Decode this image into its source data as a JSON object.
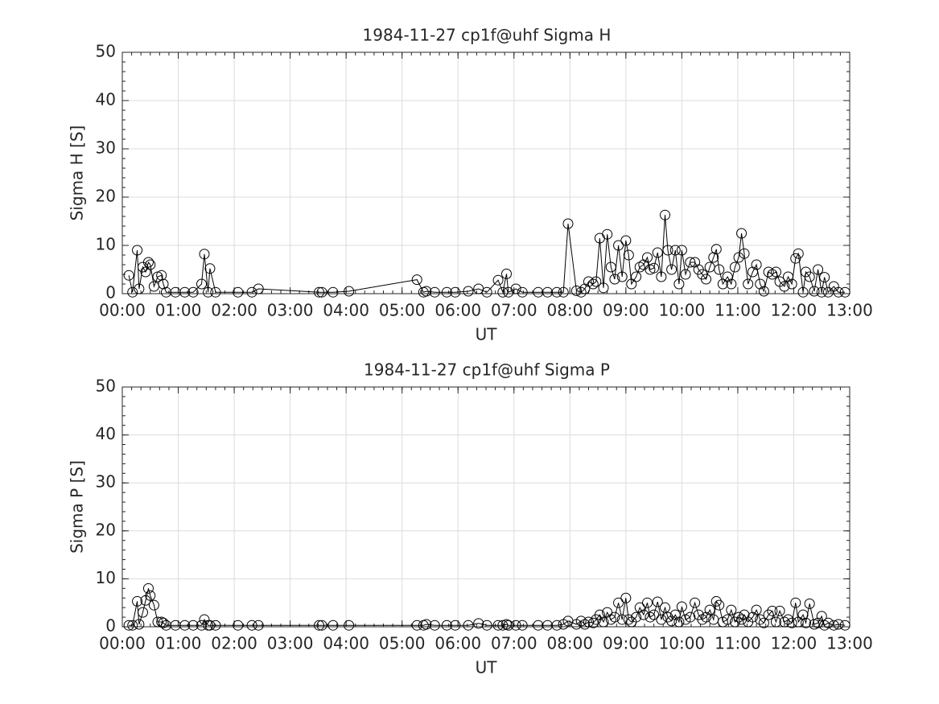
{
  "chart_data": [
    {
      "type": "line",
      "title": "1984-11-27  cp1f@uhf Sigma H",
      "xlabel": "UT",
      "ylabel": "Sigma H [S]",
      "color": "#000000",
      "marker": "circle",
      "grid": true,
      "x": [
        "00:07",
        "00:11",
        "00:16",
        "00:18",
        "00:22",
        "00:25",
        "00:28",
        "00:30",
        "00:34",
        "00:38",
        "00:42",
        "00:44",
        "00:47",
        "00:57",
        "01:07",
        "01:16",
        "01:25",
        "01:28",
        "01:32",
        "01:34",
        "01:40",
        "02:04",
        "02:19",
        "02:26",
        "03:31",
        "03:34",
        "03:46",
        "04:03",
        "05:16",
        "05:23",
        "05:26",
        "05:35",
        "05:48",
        "05:57",
        "06:11",
        "06:22",
        "06:31",
        "06:43",
        "06:48",
        "06:52",
        "06:54",
        "07:02",
        "07:09",
        "07:26",
        "07:36",
        "07:46",
        "07:53",
        "07:58",
        "08:07",
        "08:12",
        "08:16",
        "08:20",
        "08:25",
        "08:28",
        "08:32",
        "08:36",
        "08:40",
        "08:44",
        "08:48",
        "08:52",
        "08:56",
        "09:00",
        "09:03",
        "09:06",
        "09:11",
        "09:15",
        "09:19",
        "09:23",
        "09:26",
        "09:30",
        "09:34",
        "09:38",
        "09:42",
        "09:45",
        "09:49",
        "09:53",
        "09:57",
        "10:00",
        "10:04",
        "10:09",
        "10:14",
        "10:18",
        "10:22",
        "10:26",
        "10:30",
        "10:34",
        "10:37",
        "10:40",
        "10:44",
        "10:49",
        "10:53",
        "10:57",
        "11:01",
        "11:04",
        "11:07",
        "11:11",
        "11:16",
        "11:20",
        "11:24",
        "11:28",
        "11:33",
        "11:37",
        "11:41",
        "11:45",
        "11:50",
        "11:54",
        "11:58",
        "12:02",
        "12:05",
        "12:10",
        "12:13",
        "12:17",
        "12:22",
        "12:26",
        "12:30",
        "12:33",
        "12:37",
        "12:43",
        "12:48",
        "12:55"
      ],
      "values": [
        3.8,
        0.3,
        9,
        1,
        5.5,
        4.5,
        6.5,
        6,
        1.5,
        3.5,
        3.8,
        2,
        0.3,
        0.3,
        0.3,
        0.3,
        2,
        8.2,
        0.3,
        5.2,
        0.3,
        0.3,
        0.3,
        1,
        0.3,
        0.3,
        0.3,
        0.5,
        2.9,
        0.3,
        0.5,
        0.3,
        0.3,
        0.3,
        0.5,
        1,
        0.3,
        2.8,
        0.3,
        4.1,
        0.3,
        1,
        0.3,
        0.3,
        0.3,
        0.3,
        0.3,
        14.5,
        0.6,
        0.3,
        1,
        2.5,
        2,
        2.5,
        11.5,
        1.2,
        12.3,
        5.5,
        3,
        10,
        3.5,
        11,
        8,
        2,
        3.5,
        5.5,
        6,
        7.5,
        5,
        5.3,
        8.5,
        3.5,
        16.3,
        9,
        5,
        9,
        2,
        9,
        4,
        6.5,
        6.5,
        5,
        4,
        3,
        5.5,
        7.5,
        9.2,
        5,
        2,
        3.5,
        2,
        5.5,
        7.5,
        12.5,
        8.3,
        2,
        4.5,
        6,
        2,
        0.5,
        4.5,
        4,
        4.5,
        2.5,
        1.5,
        3.5,
        2,
        7.3,
        8.3,
        0.3,
        4.5,
        3.5,
        0.5,
        5,
        0.3,
        3.4,
        0.3,
        1.5,
        0.3,
        0.3
      ],
      "xlim": [
        "00:00",
        "13:00"
      ],
      "xticks": [
        "00:00",
        "01:00",
        "02:00",
        "03:00",
        "04:00",
        "05:00",
        "06:00",
        "07:00",
        "08:00",
        "09:00",
        "10:00",
        "11:00",
        "12:00",
        "13:00"
      ],
      "ylim": [
        0,
        50
      ],
      "yticks": [
        0,
        10,
        20,
        30,
        40,
        50
      ]
    },
    {
      "type": "line",
      "title": "1984-11-27  cp1f@uhf Sigma P",
      "xlabel": "UT",
      "ylabel": "Sigma P [S]",
      "color": "#000000",
      "marker": "circle",
      "grid": true,
      "x": [
        "00:07",
        "00:11",
        "00:16",
        "00:18",
        "00:22",
        "00:25",
        "00:28",
        "00:30",
        "00:34",
        "00:38",
        "00:42",
        "00:44",
        "00:47",
        "00:57",
        "01:07",
        "01:16",
        "01:25",
        "01:28",
        "01:32",
        "01:34",
        "01:40",
        "02:04",
        "02:19",
        "02:26",
        "03:31",
        "03:34",
        "03:46",
        "04:03",
        "05:16",
        "05:23",
        "05:26",
        "05:35",
        "05:48",
        "05:57",
        "06:11",
        "06:22",
        "06:31",
        "06:43",
        "06:48",
        "06:52",
        "06:54",
        "07:02",
        "07:09",
        "07:26",
        "07:36",
        "07:46",
        "07:53",
        "07:58",
        "08:07",
        "08:12",
        "08:16",
        "08:20",
        "08:25",
        "08:28",
        "08:32",
        "08:36",
        "08:40",
        "08:44",
        "08:48",
        "08:52",
        "08:56",
        "09:00",
        "09:03",
        "09:06",
        "09:11",
        "09:15",
        "09:19",
        "09:23",
        "09:26",
        "09:30",
        "09:34",
        "09:38",
        "09:42",
        "09:45",
        "09:49",
        "09:53",
        "09:57",
        "10:00",
        "10:04",
        "10:09",
        "10:14",
        "10:18",
        "10:22",
        "10:26",
        "10:30",
        "10:34",
        "10:37",
        "10:40",
        "10:44",
        "10:49",
        "10:53",
        "10:57",
        "11:01",
        "11:04",
        "11:07",
        "11:11",
        "11:16",
        "11:20",
        "11:24",
        "11:28",
        "11:33",
        "11:37",
        "11:41",
        "11:45",
        "11:50",
        "11:54",
        "11:58",
        "12:02",
        "12:05",
        "12:10",
        "12:13",
        "12:17",
        "12:22",
        "12:26",
        "12:30",
        "12:33",
        "12:37",
        "12:43",
        "12:48",
        "12:55"
      ],
      "values": [
        0.3,
        0.3,
        5.3,
        0.5,
        3,
        5.5,
        8,
        6.5,
        4.5,
        1,
        1,
        0.8,
        0.3,
        0.3,
        0.3,
        0.3,
        0.3,
        1.5,
        0.3,
        0.3,
        0.3,
        0.3,
        0.3,
        0.3,
        0.3,
        0.3,
        0.3,
        0.3,
        0.3,
        0.3,
        0.5,
        0.3,
        0.3,
        0.3,
        0.3,
        0.7,
        0.3,
        0.3,
        0.3,
        0.5,
        0.3,
        0.3,
        0.3,
        0.3,
        0.3,
        0.3,
        0.5,
        1.2,
        0.5,
        1.2,
        0.5,
        1,
        0.8,
        1.5,
        2.5,
        1,
        3,
        1.5,
        2,
        5,
        1.5,
        6,
        1.5,
        1,
        2,
        4,
        2.5,
        5,
        2,
        2.5,
        5.2,
        1.5,
        4,
        2,
        1.2,
        2.5,
        1,
        4.2,
        1.5,
        2,
        5,
        2.5,
        1.5,
        2,
        3.5,
        1.5,
        5.3,
        4.5,
        1,
        1.5,
        3.5,
        1,
        2,
        1.5,
        2.5,
        1,
        2,
        3.5,
        1.5,
        0.8,
        2.5,
        3.3,
        1,
        3.3,
        1,
        1.5,
        0.8,
        5,
        1,
        2.5,
        0.8,
        4.8,
        0.5,
        0.8,
        2.2,
        0.3,
        0.8,
        0.3,
        0.5,
        0.3
      ],
      "xlim": [
        "00:00",
        "13:00"
      ],
      "xticks": [
        "00:00",
        "01:00",
        "02:00",
        "03:00",
        "04:00",
        "05:00",
        "06:00",
        "07:00",
        "08:00",
        "09:00",
        "10:00",
        "11:00",
        "12:00",
        "13:00"
      ],
      "ylim": [
        0,
        50
      ],
      "yticks": [
        0,
        10,
        20,
        30,
        40,
        50
      ]
    }
  ]
}
